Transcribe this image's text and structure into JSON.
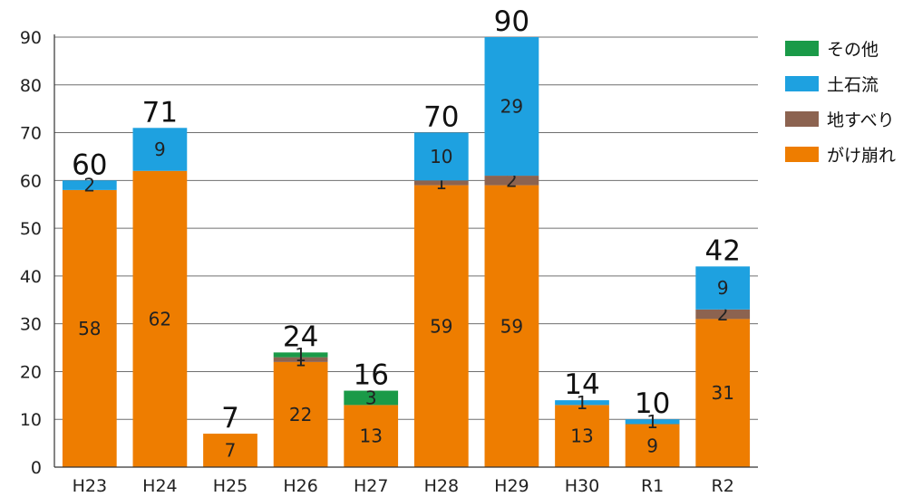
{
  "chart_data": {
    "type": "bar",
    "stacked": true,
    "categories": [
      "H23",
      "H24",
      "H25",
      "H26",
      "H27",
      "H28",
      "H29",
      "H30",
      "R1",
      "R2"
    ],
    "series": [
      {
        "name": "がけ崩れ",
        "color": "#EE7D00",
        "values": [
          58,
          62,
          7,
          22,
          13,
          59,
          59,
          13,
          9,
          31
        ]
      },
      {
        "name": "地すべり",
        "color": "#8C6350",
        "values": [
          0,
          0,
          0,
          1,
          0,
          1,
          2,
          0,
          0,
          2
        ]
      },
      {
        "name": "土石流",
        "color": "#1EA1E0",
        "values": [
          2,
          9,
          0,
          0,
          0,
          10,
          29,
          1,
          1,
          9
        ]
      },
      {
        "name": "その他",
        "color": "#1A9A48",
        "values": [
          0,
          0,
          0,
          1,
          3,
          0,
          0,
          0,
          0,
          0
        ]
      }
    ],
    "totals": [
      60,
      71,
      7,
      24,
      16,
      70,
      90,
      14,
      10,
      42
    ],
    "legend_order": [
      "その他",
      "土石流",
      "地すべり",
      "がけ崩れ"
    ],
    "legend_position": "right",
    "ylim": [
      0,
      90
    ],
    "yticks": [
      0,
      10,
      20,
      30,
      40,
      50,
      60,
      70,
      80,
      90
    ],
    "grid": true,
    "title": "",
    "xlabel": "",
    "ylabel": ""
  }
}
